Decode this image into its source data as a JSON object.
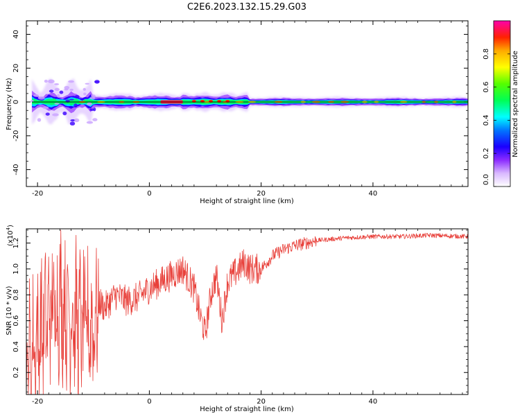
{
  "figure": {
    "title": "C2E6.2023.132.15.29.G03"
  },
  "chart_data": [
    {
      "type": "heatmap",
      "title": "C2E6.2023.132.15.29.G03",
      "xlabel": "Height of straight line (km)",
      "ylabel": "Frequency (Hz)",
      "xlim": [
        -22,
        57
      ],
      "ylim": [
        -50,
        48
      ],
      "x_ticks": [
        -20,
        0,
        20,
        40
      ],
      "y_ticks": [
        -40,
        -20,
        0,
        20,
        40
      ],
      "colorbar": {
        "label": "Normalized spectral amplitude",
        "range": [
          0,
          1
        ],
        "ticks": [
          0.0,
          0.2,
          0.4,
          0.6,
          0.8
        ],
        "colormap": [
          "#ffffff",
          "#9b4dff",
          "#2200ff",
          "#00ffff",
          "#00ff00",
          "#ffff00",
          "#ff0000",
          "#ff00aa"
        ]
      },
      "band": {
        "center_frequency_hz": 0,
        "x_start_km": -21,
        "x_end_km": 57,
        "strong_segment_km": [
          2,
          6
        ]
      },
      "colors": {
        "line": "#000000"
      }
    },
    {
      "type": "line",
      "xlabel": "Height of straight line (km)",
      "ylabel": "SNR (10 * v/v)",
      "y_multiplier": "(x10",
      "y_multiplier_exp": "4",
      "y_multiplier_close": ")",
      "xlim": [
        -22,
        57
      ],
      "ylim": [
        0.03,
        1.31
      ],
      "x_ticks": [
        -20,
        0,
        20,
        40
      ],
      "y_ticks": [
        0.2,
        0.4,
        0.6,
        0.8,
        1.0,
        1.2
      ],
      "series": [
        {
          "color": "#e8403a",
          "x": [
            -22,
            -20,
            -18,
            -16,
            -14,
            -12,
            -10,
            -9,
            -8,
            -6,
            -4,
            -2,
            0,
            2,
            4,
            6,
            8,
            9,
            10,
            11,
            12,
            13,
            14,
            16,
            17,
            18,
            20,
            22,
            24,
            26,
            28,
            30,
            35,
            40,
            45,
            50,
            57
          ],
          "y": [
            0.25,
            0.45,
            0.65,
            0.75,
            0.65,
            0.55,
            0.55,
            0.75,
            0.7,
            0.8,
            0.75,
            0.78,
            0.85,
            0.9,
            0.95,
            1.0,
            0.85,
            0.65,
            0.5,
            0.8,
            0.95,
            0.6,
            0.9,
            1.0,
            1.05,
            1.0,
            1.0,
            1.1,
            1.15,
            1.18,
            1.2,
            1.22,
            1.24,
            1.25,
            1.25,
            1.26,
            1.25
          ]
        }
      ]
    }
  ]
}
